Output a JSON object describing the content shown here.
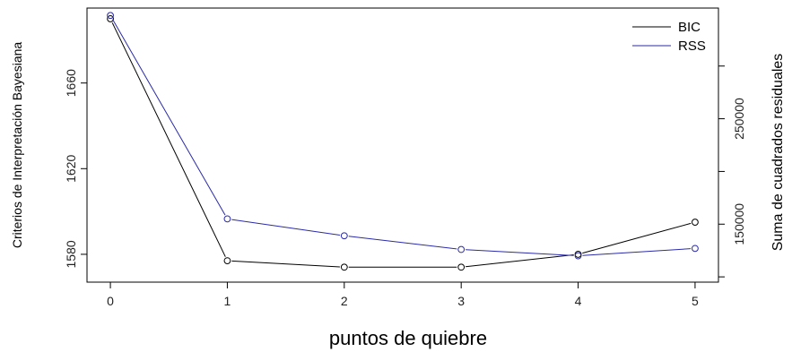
{
  "chart_data": {
    "type": "line",
    "xlabel": "puntos de quiebre",
    "ylabel_left": "Criterios de Interpretación Bayesiana",
    "ylabel_right": "Suma de cuadrados residuales",
    "x": [
      0,
      1,
      2,
      3,
      4,
      5
    ],
    "xticks": [
      "0",
      "1",
      "2",
      "3",
      "4",
      "5"
    ],
    "xlim": [
      -0.2,
      5.2
    ],
    "left_axis": {
      "ylim": [
        1567,
        1695
      ],
      "ticks": [
        1580,
        1620,
        1660
      ]
    },
    "right_axis": {
      "ylim": [
        95000,
        355000
      ],
      "ticks": [
        150000,
        250000
      ],
      "minor_ticks": [
        100000,
        200000,
        300000
      ]
    },
    "series": [
      {
        "name": "BIC",
        "axis": "left",
        "color": "#000000",
        "values": [
          1690,
          1577,
          1574,
          1574,
          1580,
          1595
        ]
      },
      {
        "name": "RSS",
        "axis": "right",
        "color": "#2a2aa8",
        "values": [
          348000,
          155000,
          139000,
          126000,
          120000,
          127000
        ]
      }
    ],
    "legend": {
      "position": "top-right",
      "entries": [
        "BIC",
        "RSS"
      ]
    },
    "grid": false
  }
}
